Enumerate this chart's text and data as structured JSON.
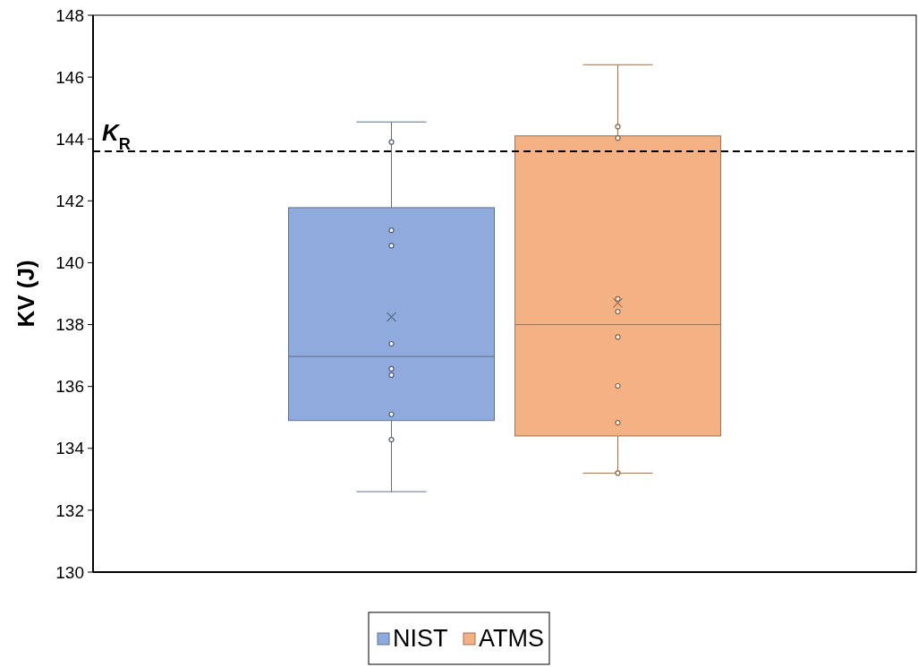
{
  "chart_data": {
    "type": "box",
    "ylabel": "KV (J)",
    "categories": [
      null
    ],
    "ylim": [
      130,
      148
    ],
    "yticks": [
      130,
      132,
      134,
      136,
      138,
      140,
      142,
      144,
      146,
      148
    ],
    "grid": false,
    "legend": "bottom",
    "marker": "cross",
    "series": [
      {
        "name": "NIST",
        "color": "#8faadc",
        "boxes": [
          {
            "low": 132.6,
            "q1": 134.9,
            "median": 136.97,
            "q3": 141.78,
            "high": 144.55,
            "mean": 138.25,
            "outliers": [
              143.9,
              141.05,
              140.55,
              137.38,
              136.57,
              136.37,
              135.1,
              134.28
            ]
          }
        ]
      },
      {
        "name": "ATMS",
        "color": "#f4b183",
        "boxes": [
          {
            "low": 133.2,
            "q1": 134.4,
            "median": 138.0,
            "q3": 144.1,
            "high": 146.4,
            "mean": 138.7,
            "outliers": [
              144.4,
              144.03,
              138.83,
              138.42,
              137.6,
              136.02,
              134.83,
              133.2
            ]
          }
        ]
      }
    ],
    "ref_lines": [
      {
        "axis": "y",
        "value": 143.6,
        "label": "K$_{R}$",
        "color": "#000000",
        "line_style": "dashed"
      }
    ]
  }
}
